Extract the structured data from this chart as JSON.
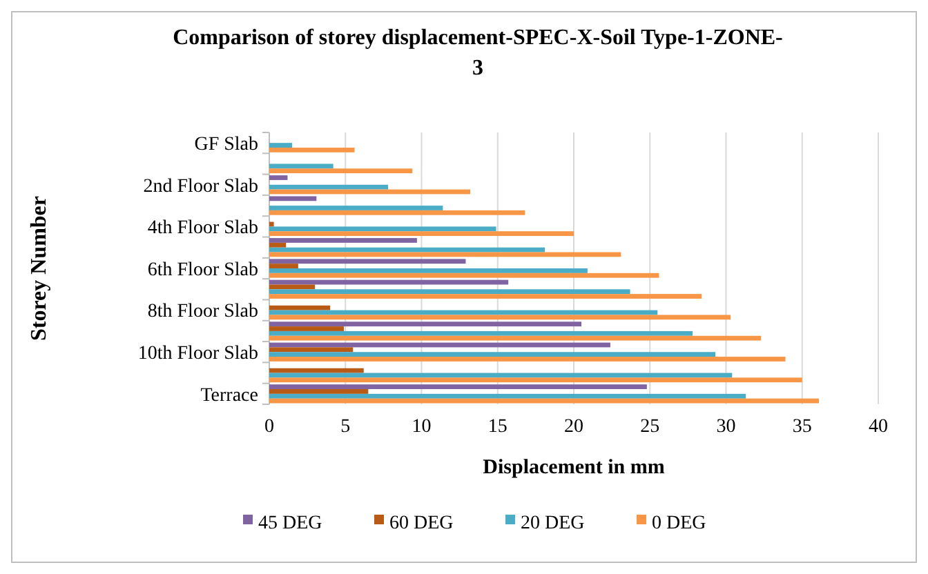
{
  "chart_data": {
    "type": "bar",
    "orientation": "horizontal",
    "title": "Comparison of storey displacement-SPEC-X-Soil Type-1-ZONE-3",
    "xlabel": "Displacement in mm",
    "ylabel": "Storey Number",
    "categories": [
      "GF Slab",
      null,
      "2nd Floor Slab",
      null,
      "4th Floor Slab",
      null,
      "6th Floor Slab",
      null,
      "8th Floor Slab",
      null,
      "10th Floor Slab",
      null,
      "Terrace"
    ],
    "series": [
      {
        "name": "45 DEG",
        "color": "#8064a2",
        "values": [
          0,
          0,
          1.2,
          3.1,
          0,
          9.7,
          12.9,
          15.7,
          null,
          20.5,
          22.4,
          null,
          24.8
        ]
      },
      {
        "name": "60 DEG",
        "color": "#b85b17",
        "values": [
          0,
          0,
          0,
          0,
          0.3,
          1.1,
          1.9,
          3.0,
          4.0,
          4.9,
          5.5,
          6.2,
          6.5
        ]
      },
      {
        "name": "20 DEG",
        "color": "#4bacc6",
        "values": [
          1.5,
          4.2,
          7.8,
          11.4,
          14.9,
          18.1,
          20.9,
          23.7,
          25.5,
          27.8,
          29.3,
          30.4,
          31.3
        ]
      },
      {
        "name": "0 DEG",
        "color": "#f79646",
        "values": [
          5.6,
          9.4,
          13.2,
          16.8,
          20.0,
          23.1,
          25.6,
          28.4,
          30.3,
          32.3,
          33.9,
          35.0,
          36.1
        ]
      }
    ],
    "xlim": [
      0,
      40
    ],
    "xticks": [
      0,
      5,
      10,
      15,
      20,
      25,
      30,
      35,
      40
    ],
    "grid": "x",
    "legend": "bottom"
  }
}
